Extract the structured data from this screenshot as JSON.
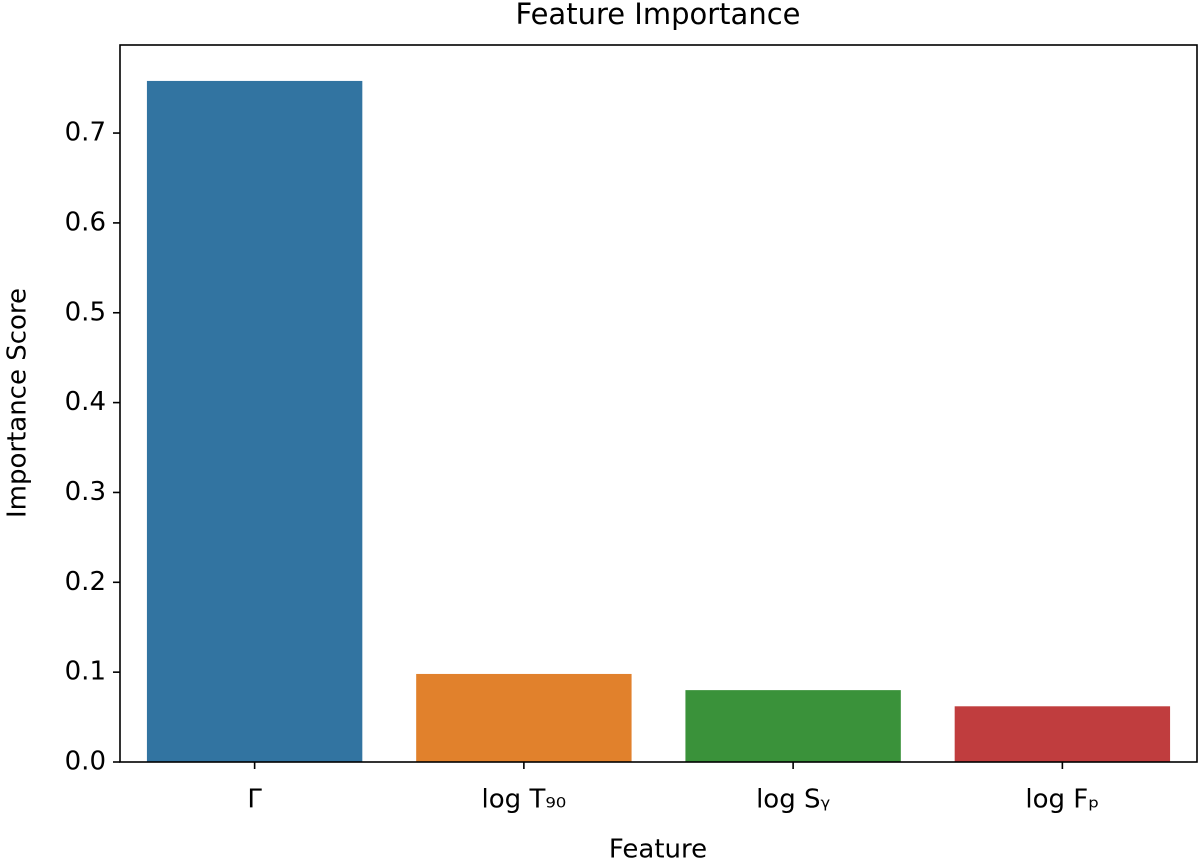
{
  "chart_data": {
    "type": "bar",
    "title": "Feature Importance",
    "x_label": "Feature",
    "y_label": "Importance Score",
    "categories": [
      "Γ",
      "log T₉₀",
      "log Sᵧ",
      "log Fₚ"
    ],
    "values": [
      0.758,
      0.098,
      0.08,
      0.062
    ],
    "colors": [
      "#3274a1",
      "#e1812c",
      "#3a923a",
      "#c03d3e"
    ],
    "ylim": [
      0,
      0.798
    ],
    "yticks": [
      {
        "value": 0,
        "label": "0.0"
      },
      0.1,
      0.2,
      0.3,
      0.4,
      0.5,
      0.6,
      0.7
    ],
    "grid": false
  }
}
